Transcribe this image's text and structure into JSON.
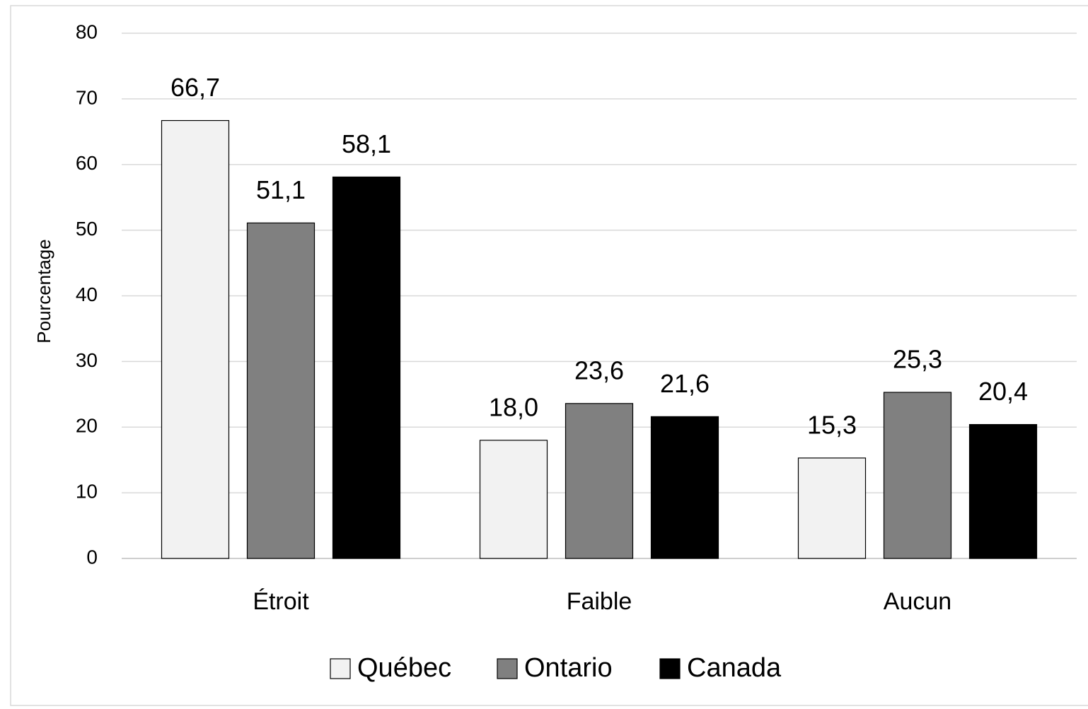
{
  "chart_data": {
    "type": "bar",
    "y_label": "Pourcentage",
    "categories": [
      "Étroit",
      "Faible",
      "Aucun"
    ],
    "series": [
      {
        "name": "Québec",
        "color": "#f2f2f2",
        "values": [
          66.7,
          18.0,
          15.3
        ],
        "value_labels": [
          "66,7",
          "18,0",
          "15,3"
        ]
      },
      {
        "name": "Ontario",
        "color": "#808080",
        "values": [
          51.1,
          23.6,
          25.3
        ],
        "value_labels": [
          "51,1",
          "23,6",
          "25,3"
        ]
      },
      {
        "name": "Canada",
        "color": "#000000",
        "values": [
          58.1,
          21.6,
          20.4
        ],
        "value_labels": [
          "58,1",
          "21,6",
          "20,4"
        ]
      }
    ],
    "ylim": [
      0,
      80
    ],
    "yticks": [
      0,
      10,
      20,
      30,
      40,
      50,
      60,
      70,
      80
    ],
    "grid": true,
    "legend": "bottom"
  }
}
